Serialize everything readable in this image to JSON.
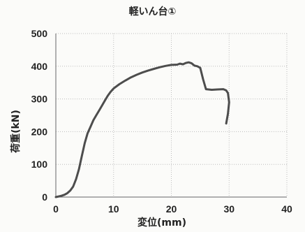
{
  "chart_data": {
    "type": "line",
    "title": "軽いん台①",
    "xlabel": "変位(mm)",
    "ylabel": "荷重(kN)",
    "xlim": [
      0,
      40
    ],
    "ylim": [
      0,
      500
    ],
    "xticks": [
      "0",
      "10",
      "20",
      "30",
      "40"
    ],
    "yticks": [
      "0",
      "100",
      "200",
      "300",
      "400",
      "500"
    ],
    "grid": true,
    "series": [
      {
        "color": "#4d4d4d",
        "x": [
          0,
          0.5,
          1,
          1.5,
          2,
          2.5,
          3,
          3.5,
          4,
          4.5,
          5,
          5.5,
          6,
          6.5,
          7,
          7.5,
          8,
          8.5,
          9,
          9.5,
          10,
          11,
          12,
          13,
          14,
          15,
          16,
          17,
          18,
          19,
          20,
          21,
          21.5,
          22,
          22.5,
          23,
          23.5,
          24,
          24.5,
          25,
          25.5,
          26,
          27,
          28,
          29,
          29.5,
          29.8,
          30,
          29.8,
          29.5
        ],
        "y": [
          0,
          2,
          4,
          7,
          12,
          20,
          32,
          55,
          85,
          125,
          165,
          195,
          215,
          235,
          250,
          265,
          280,
          295,
          310,
          322,
          332,
          345,
          356,
          366,
          374,
          381,
          387,
          392,
          397,
          401,
          404,
          405,
          408,
          406,
          410,
          412,
          409,
          402,
          400,
          395,
          360,
          330,
          328,
          329,
          330,
          326,
          318,
          290,
          255,
          225
        ]
      }
    ]
  }
}
